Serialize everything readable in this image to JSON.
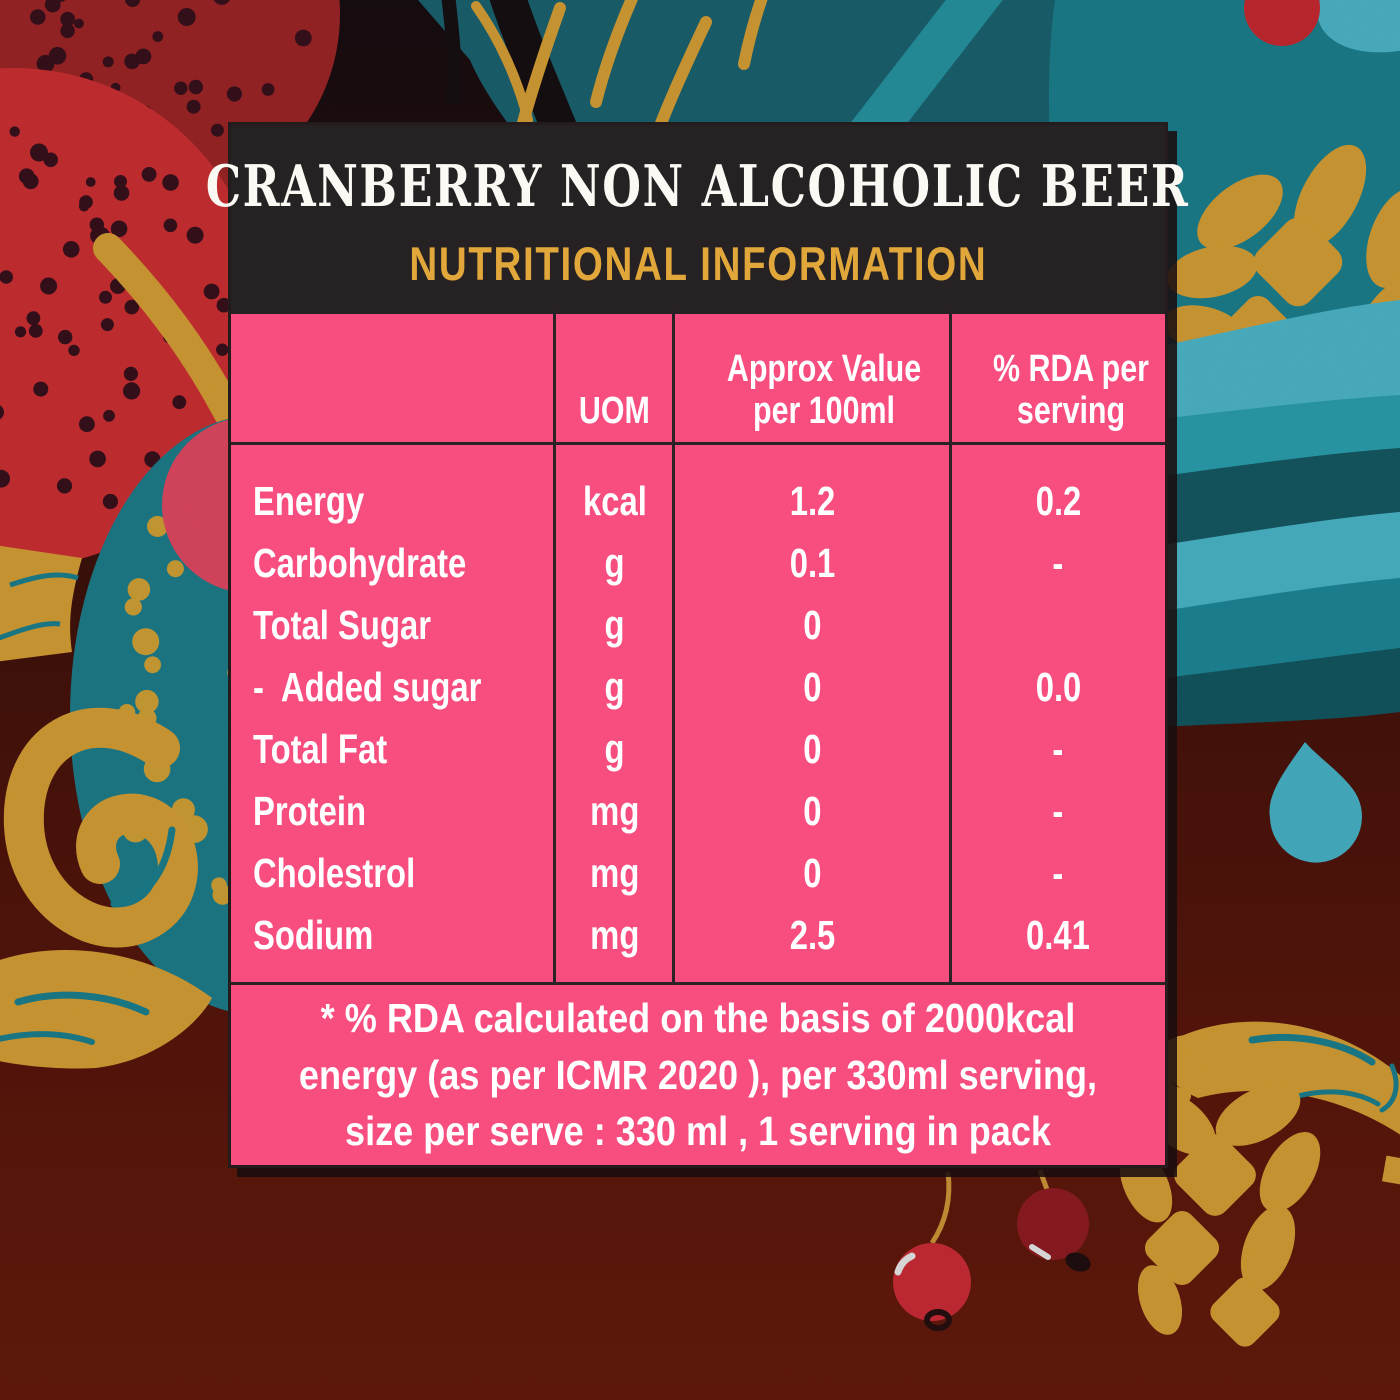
{
  "panel": {
    "title": "CRANBERRY NON ALCOHOLIC BEER",
    "subtitle": "NUTRITIONAL INFORMATION",
    "table": {
      "columns": [
        "",
        "UOM",
        "Approx Value per 100ml",
        "% RDA per serving"
      ],
      "rows": [
        {
          "label": "Energy",
          "uom": "kcal",
          "value": "1.2",
          "rda": "0.2"
        },
        {
          "label": "Carbohydrate",
          "uom": "g",
          "value": "0.1",
          "rda": "-"
        },
        {
          "label": "Total Sugar",
          "uom": "g",
          "value": "0",
          "rda": ""
        },
        {
          "label": "-  Added sugar",
          "uom": "g",
          "value": "0",
          "rda": "0.0"
        },
        {
          "label": "Total Fat",
          "uom": "g",
          "value": "0",
          "rda": "-"
        },
        {
          "label": "Protein",
          "uom": "mg",
          "value": "0",
          "rda": "-"
        },
        {
          "label": "Cholestrol",
          "uom": "mg",
          "value": "0",
          "rda": "-"
        },
        {
          "label": "Sodium",
          "uom": "mg",
          "value": "2.5",
          "rda": "0.41"
        }
      ]
    },
    "footnote": "* % RDA calculated on the basis of 2000kcal energy (as per ICMR 2020 ), per 330ml serving, size per serve : 330 ml , 1 serving in pack"
  },
  "colors": {
    "panel_pink": "#f74e7f",
    "header_dark": "#262122",
    "accent_gold": "#e2a73b",
    "text_white": "#ffffff",
    "table_line": "#2a2224",
    "art_gold": "#ecaf3b",
    "teal_dark": "#17626d",
    "teal_mid": "#1f8c9b",
    "teal_light": "#2fb3c5",
    "sky_blue": "#52c9de",
    "berry_red_bright": "#e13438",
    "berry_red_dark": "#ae292b",
    "maroon_background": "#6c190e"
  }
}
